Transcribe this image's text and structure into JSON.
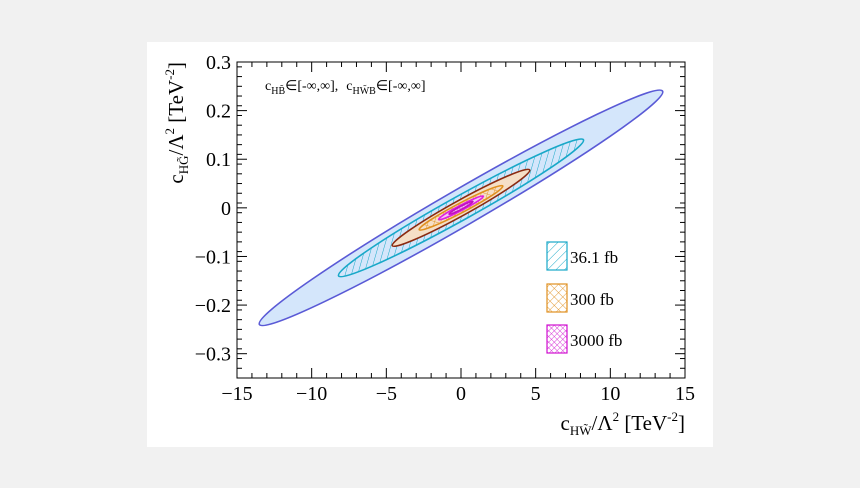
{
  "chart_data": {
    "type": "scatter",
    "title": "",
    "xlabel": {
      "base": "c",
      "sub": "HW̃",
      "rest": "/Λ",
      "sup": "2",
      "unit": " [TeV",
      "unit_sup": "-2",
      "close": "]"
    },
    "ylabel": {
      "base": "c",
      "sub": "HG̃",
      "rest": "/Λ",
      "sup": "2",
      "unit": " [TeV",
      "unit_sup": "-2",
      "close": "]"
    },
    "xlim": [
      -15,
      15
    ],
    "ylim": [
      -0.35,
      0.3
    ],
    "xticks": [
      -15,
      -10,
      -5,
      0,
      5,
      10,
      15
    ],
    "xtick_labels": [
      "−15",
      "−10",
      "−5",
      "0",
      "5",
      "10",
      "15"
    ],
    "yticks": [
      -0.3,
      -0.2,
      -0.1,
      0,
      0.1,
      0.2,
      0.3
    ],
    "ytick_labels": [
      "−0.3",
      "−0.2",
      "−0.1",
      "0",
      "0.1",
      "0.2",
      "0.3"
    ],
    "annotation": {
      "part1_base": "c",
      "part1_sub": "HB̃",
      "part1_rest": "∈[-∞,∞],",
      "part2_base": "c",
      "part2_sub": "HW̃B",
      "part2_rest": "∈[-∞,∞]"
    },
    "series": [
      {
        "name": "36.1 fb",
        "kind": "outer",
        "center": [
          0,
          0
        ],
        "x_extent": [
          -13.5,
          13.5
        ],
        "y_extent": [
          -0.24,
          0.24
        ],
        "half_width_y": 0.043,
        "color": "#5a5ad6",
        "fill": "#d4e6fb"
      },
      {
        "name": "36.1 fb",
        "kind": "inner",
        "center": [
          0,
          0
        ],
        "x_extent": [
          -8.2,
          8.2
        ],
        "y_extent": [
          -0.14,
          0.14
        ],
        "half_width_y": 0.028,
        "color": "#18a8c8",
        "fill": "none"
      },
      {
        "name": "300 fb",
        "kind": "outer",
        "center": [
          0,
          0
        ],
        "x_extent": [
          -4.6,
          4.6
        ],
        "y_extent": [
          -0.078,
          0.078
        ],
        "half_width_y": 0.018,
        "color": "#8b2a10",
        "fill": "#f5dfc7"
      },
      {
        "name": "300 fb",
        "kind": "inner",
        "center": [
          0,
          0
        ],
        "x_extent": [
          -2.8,
          2.8
        ],
        "y_extent": [
          -0.045,
          0.045
        ],
        "half_width_y": 0.011,
        "color": "#e09020",
        "fill": "none"
      },
      {
        "name": "3000 fb",
        "kind": "outer",
        "center": [
          0,
          0
        ],
        "x_extent": [
          -1.5,
          1.5
        ],
        "y_extent": [
          -0.024,
          0.024
        ],
        "half_width_y": 0.006,
        "color": "#e020e0",
        "fill": "#f4c8f4"
      },
      {
        "name": "3000 fb",
        "kind": "inner",
        "center": [
          0,
          0
        ],
        "x_extent": [
          -0.8,
          0.8
        ],
        "y_extent": [
          -0.013,
          0.013
        ],
        "half_width_y": 0.0035,
        "color": "#c010c0",
        "fill": "none"
      }
    ],
    "legend": [
      {
        "label": "36.1 fb",
        "color": "#18a8c8",
        "pattern": "hatch"
      },
      {
        "label": "300 fb",
        "color": "#e09020",
        "pattern": "cross"
      },
      {
        "label": "3000 fb",
        "color": "#d010d0",
        "pattern": "cross"
      }
    ],
    "legend_position": "lower-right"
  }
}
